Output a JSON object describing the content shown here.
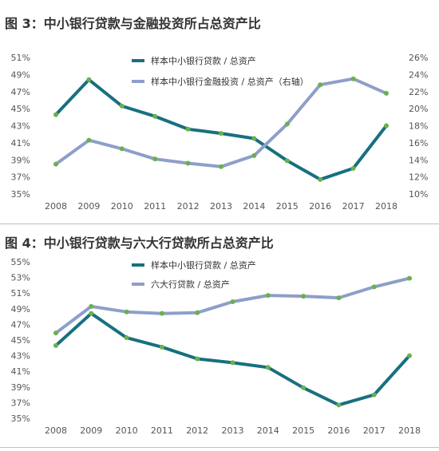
{
  "chart_data": [
    {
      "type": "line",
      "title": "图 3：中小银行贷款与金融投资所占总资产比",
      "categories": [
        "2008",
        "2009",
        "2010",
        "2011",
        "2012",
        "2013",
        "2014",
        "2015",
        "2016",
        "2017",
        "2018"
      ],
      "ylim": [
        35,
        51
      ],
      "yticks": [
        "51%",
        "49%",
        "47%",
        "45%",
        "43%",
        "41%",
        "39%",
        "37%",
        "35%"
      ],
      "yticks_right": [
        "26%",
        "24%",
        "22%",
        "20%",
        "18%",
        "16%",
        "14%",
        "12%",
        "10%"
      ],
      "ylim_right": [
        10,
        26
      ],
      "grid": false,
      "legend_position": "top-center",
      "series": [
        {
          "name": "样本中小银行贷款 / 总资产",
          "axis": "left",
          "color": "#17707f",
          "values": [
            44.3,
            48.4,
            45.3,
            44.1,
            42.6,
            42.1,
            41.5,
            38.9,
            36.7,
            38.0,
            43.0
          ]
        },
        {
          "name": "样本中小银行金融投资 / 总资产（右轴）",
          "axis": "right",
          "color": "#8d9fc9",
          "values": [
            13.5,
            16.3,
            15.3,
            14.1,
            13.6,
            13.2,
            14.5,
            18.2,
            22.8,
            23.5,
            21.8
          ]
        }
      ]
    },
    {
      "type": "line",
      "title": "图 4：中小银行贷款与六大行贷款所占总资产比",
      "categories": [
        "2008",
        "2009",
        "2010",
        "2011",
        "2012",
        "2013",
        "2014",
        "2015",
        "2016",
        "2017",
        "2018"
      ],
      "ylim": [
        35,
        55
      ],
      "yticks": [
        "55%",
        "53%",
        "51%",
        "49%",
        "47%",
        "45%",
        "43%",
        "41%",
        "39%",
        "37%",
        "35%"
      ],
      "grid": false,
      "legend_position": "top-center",
      "series": [
        {
          "name": "样本中小银行贷款 / 总资产",
          "color": "#17707f",
          "values": [
            44.3,
            48.4,
            45.3,
            44.1,
            42.6,
            42.1,
            41.5,
            38.9,
            36.7,
            38.0,
            43.0
          ]
        },
        {
          "name": "六大行贷款 / 总资产",
          "color": "#8d9fc9",
          "values": [
            45.9,
            49.3,
            48.6,
            48.4,
            48.5,
            49.9,
            50.7,
            50.6,
            50.4,
            51.8,
            52.9
          ]
        }
      ]
    }
  ],
  "marker_color": "#6ab04c"
}
